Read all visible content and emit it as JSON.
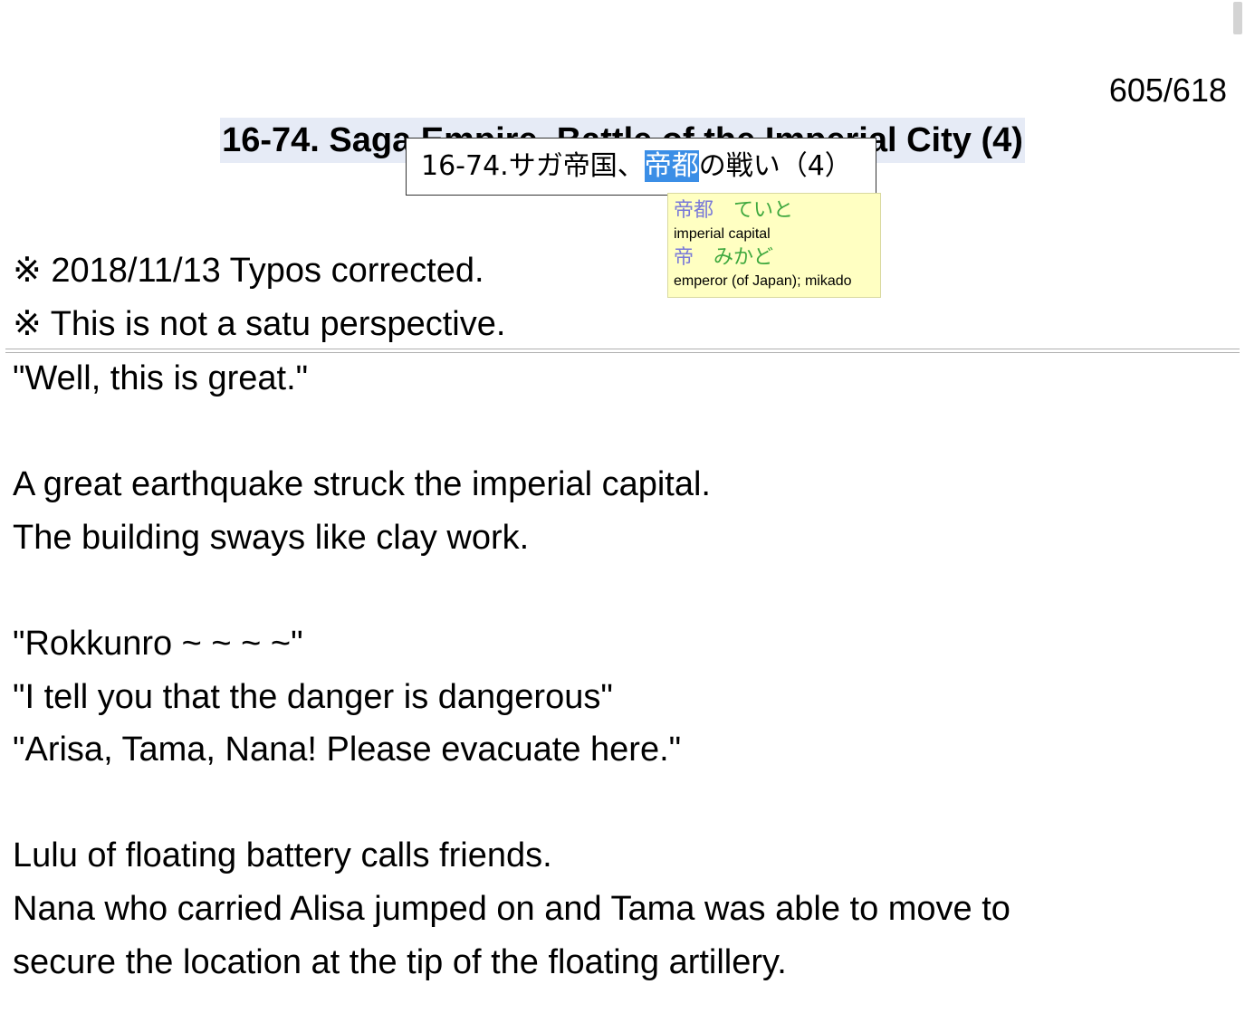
{
  "page_counter": "605/618",
  "chapter_title": "16-74. Saga Empire, Battle of the Imperial City (4)",
  "japanese_popup": {
    "before": "16-74.サガ帝国、",
    "highlighted": "帝都",
    "after": "の戦い（4）"
  },
  "dictionary": [
    {
      "kanji": "帝都",
      "reading": "ていと",
      "definition": "imperial capital"
    },
    {
      "kanji": "帝",
      "reading": "みかど",
      "definition": "emperor (of Japan); mikado"
    }
  ],
  "notes": [
    "※ 2018/11/13 Typos corrected.",
    "※ This is not a satu perspective."
  ],
  "body_lines": [
    "\"Well, this is great.\"",
    "",
    "A great earthquake struck the imperial capital.",
    "The building sways like clay work.",
    "",
    "\"Rokkunro ~ ~ ~ ~\"",
    "\"I tell you that the danger is dangerous\"",
    "\"Arisa, Tama, Nana! Please evacuate here.\"",
    "",
    "Lulu of floating battery calls friends.",
    "Nana who carried Alisa jumped on and Tama was able to move to",
    "secure the location at the tip of the floating artillery."
  ],
  "colors": {
    "title_highlight": "#e6ebf6",
    "selection": "#3b8ee6",
    "tooltip_bg": "#ffffc2",
    "dict_kanji": "#7a7ad8",
    "dict_reading": "#3ea83e"
  }
}
